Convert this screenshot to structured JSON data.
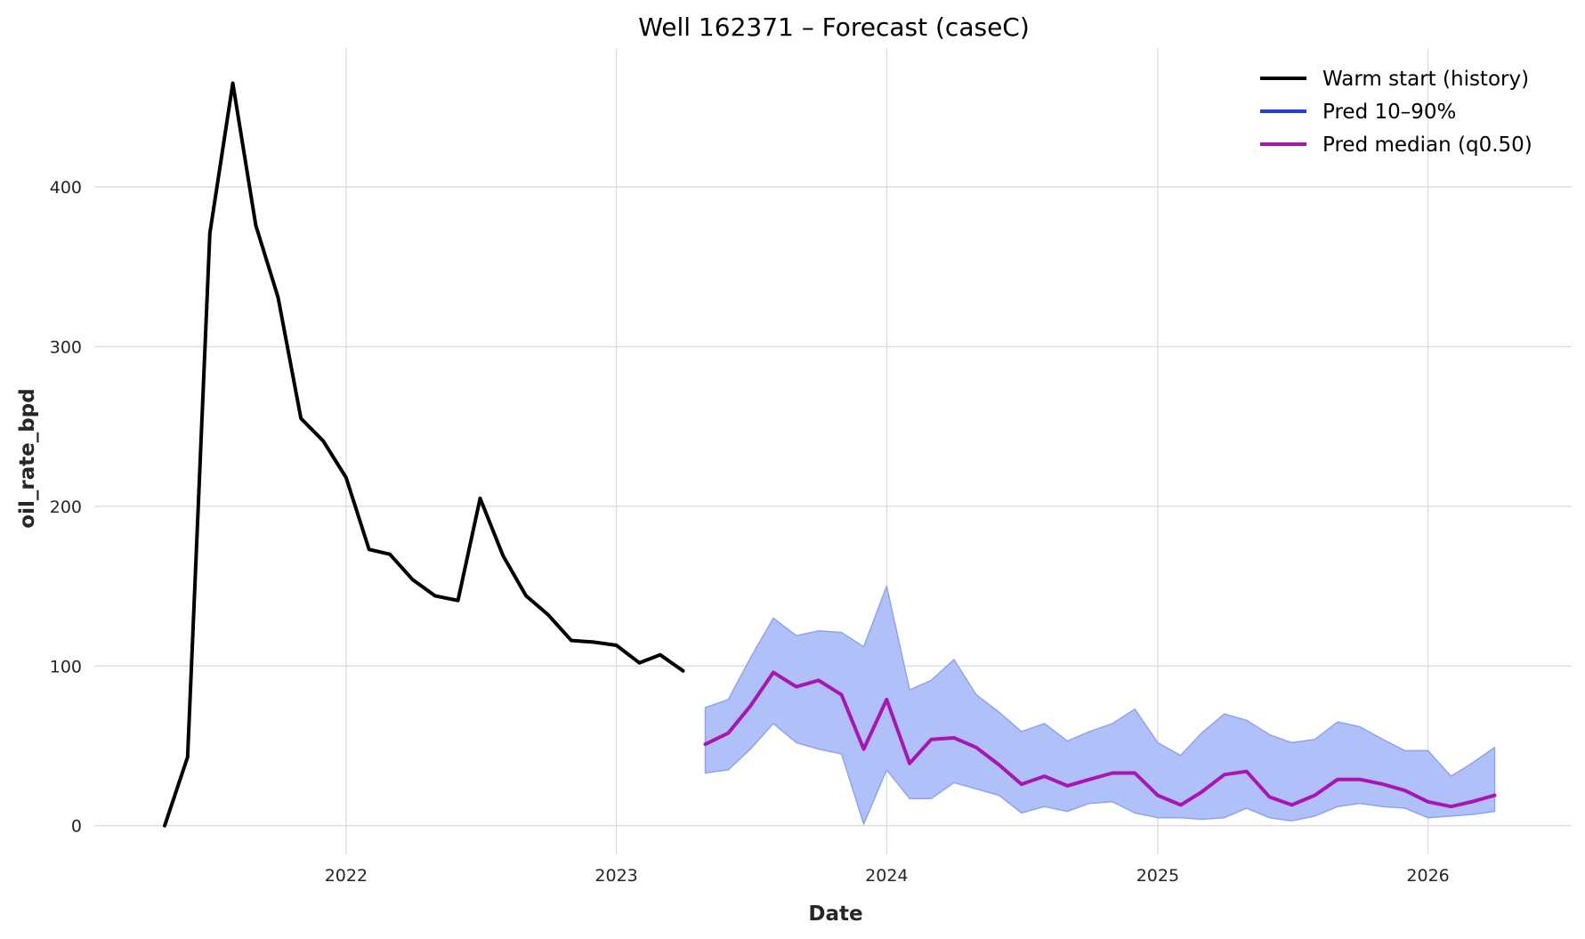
{
  "chart_data": {
    "type": "line",
    "title": "Well 162371 – Forecast (caseC)",
    "xlabel": "Date",
    "ylabel": "oil_rate_bpd",
    "x_ticks": [
      "2022",
      "2023",
      "2024",
      "2025",
      "2026"
    ],
    "y_ticks": [
      "0",
      "100",
      "200",
      "300",
      "400"
    ],
    "xlim": [
      "2021-01-26",
      "2026-07-14"
    ],
    "ylim": [
      -18,
      487
    ],
    "grid": true,
    "legend_position": "top-right",
    "series": [
      {
        "name": "Warm start (history)",
        "kind": "line",
        "color": "#000000",
        "x": [
          "2021-05-01",
          "2021-06-01",
          "2021-07-01",
          "2021-08-01",
          "2021-09-01",
          "2021-10-01",
          "2021-11-01",
          "2021-12-01",
          "2022-01-01",
          "2022-02-01",
          "2022-03-01",
          "2022-04-01",
          "2022-05-01",
          "2022-06-01",
          "2022-07-01",
          "2022-08-01",
          "2022-09-01",
          "2022-10-01",
          "2022-11-01",
          "2022-12-01",
          "2023-01-01",
          "2023-02-01",
          "2023-03-01",
          "2023-04-01"
        ],
        "values": [
          0,
          43,
          371,
          465,
          376,
          331,
          255,
          241,
          218,
          173,
          170,
          154,
          144,
          141,
          205,
          169,
          144,
          132,
          116,
          115,
          113,
          102,
          107,
          97
        ]
      },
      {
        "name": "Pred 10–90%",
        "kind": "band",
        "color": "#1f3ce8",
        "fill": "#b0c0f8",
        "edge": "#8ea4f2",
        "x": [
          "2023-05-01",
          "2023-06-01",
          "2023-07-01",
          "2023-08-01",
          "2023-09-01",
          "2023-10-01",
          "2023-11-01",
          "2023-12-01",
          "2024-01-01",
          "2024-02-01",
          "2024-03-01",
          "2024-04-01",
          "2024-05-01",
          "2024-06-01",
          "2024-07-01",
          "2024-08-01",
          "2024-09-01",
          "2024-10-01",
          "2024-11-01",
          "2024-12-01",
          "2025-01-01",
          "2025-02-01",
          "2025-03-01",
          "2025-04-01",
          "2025-05-01",
          "2025-06-01",
          "2025-07-01",
          "2025-08-01",
          "2025-09-01",
          "2025-10-01",
          "2025-11-01",
          "2025-12-01",
          "2026-01-01",
          "2026-02-01",
          "2026-03-01",
          "2026-04-01"
        ],
        "upper": [
          74,
          79,
          105,
          130,
          119,
          122,
          121,
          112,
          150,
          85,
          91,
          104,
          82,
          71,
          59,
          64,
          53,
          59,
          64,
          73,
          52,
          44,
          58,
          70,
          66,
          57,
          52,
          54,
          65,
          62,
          54,
          47,
          47,
          31,
          39,
          49
        ],
        "lower": [
          33,
          35,
          48,
          64,
          52,
          48,
          45,
          1,
          35,
          17,
          17,
          27,
          23,
          19,
          8,
          12,
          9,
          14,
          15,
          8,
          5,
          5,
          4,
          5,
          11,
          5,
          3,
          6,
          12,
          14,
          12,
          11,
          5,
          6,
          7,
          9
        ]
      },
      {
        "name": "Pred median (q0.50)",
        "kind": "line",
        "color": "#a914b4",
        "x": [
          "2023-05-01",
          "2023-06-01",
          "2023-07-01",
          "2023-08-01",
          "2023-09-01",
          "2023-10-01",
          "2023-11-01",
          "2023-12-01",
          "2024-01-01",
          "2024-02-01",
          "2024-03-01",
          "2024-04-01",
          "2024-05-01",
          "2024-06-01",
          "2024-07-01",
          "2024-08-01",
          "2024-09-01",
          "2024-10-01",
          "2024-11-01",
          "2024-12-01",
          "2025-01-01",
          "2025-02-01",
          "2025-03-01",
          "2025-04-01",
          "2025-05-01",
          "2025-06-01",
          "2025-07-01",
          "2025-08-01",
          "2025-09-01",
          "2025-10-01",
          "2025-11-01",
          "2025-12-01",
          "2026-01-01",
          "2026-02-01",
          "2026-03-01",
          "2026-04-01"
        ],
        "values": [
          51,
          58,
          75,
          96,
          87,
          91,
          82,
          48,
          79,
          39,
          54,
          55,
          49,
          38,
          26,
          31,
          25,
          29,
          33,
          33,
          19,
          13,
          21,
          32,
          34,
          18,
          13,
          19,
          29,
          29,
          26,
          22,
          15,
          12,
          15,
          19
        ]
      }
    ]
  }
}
